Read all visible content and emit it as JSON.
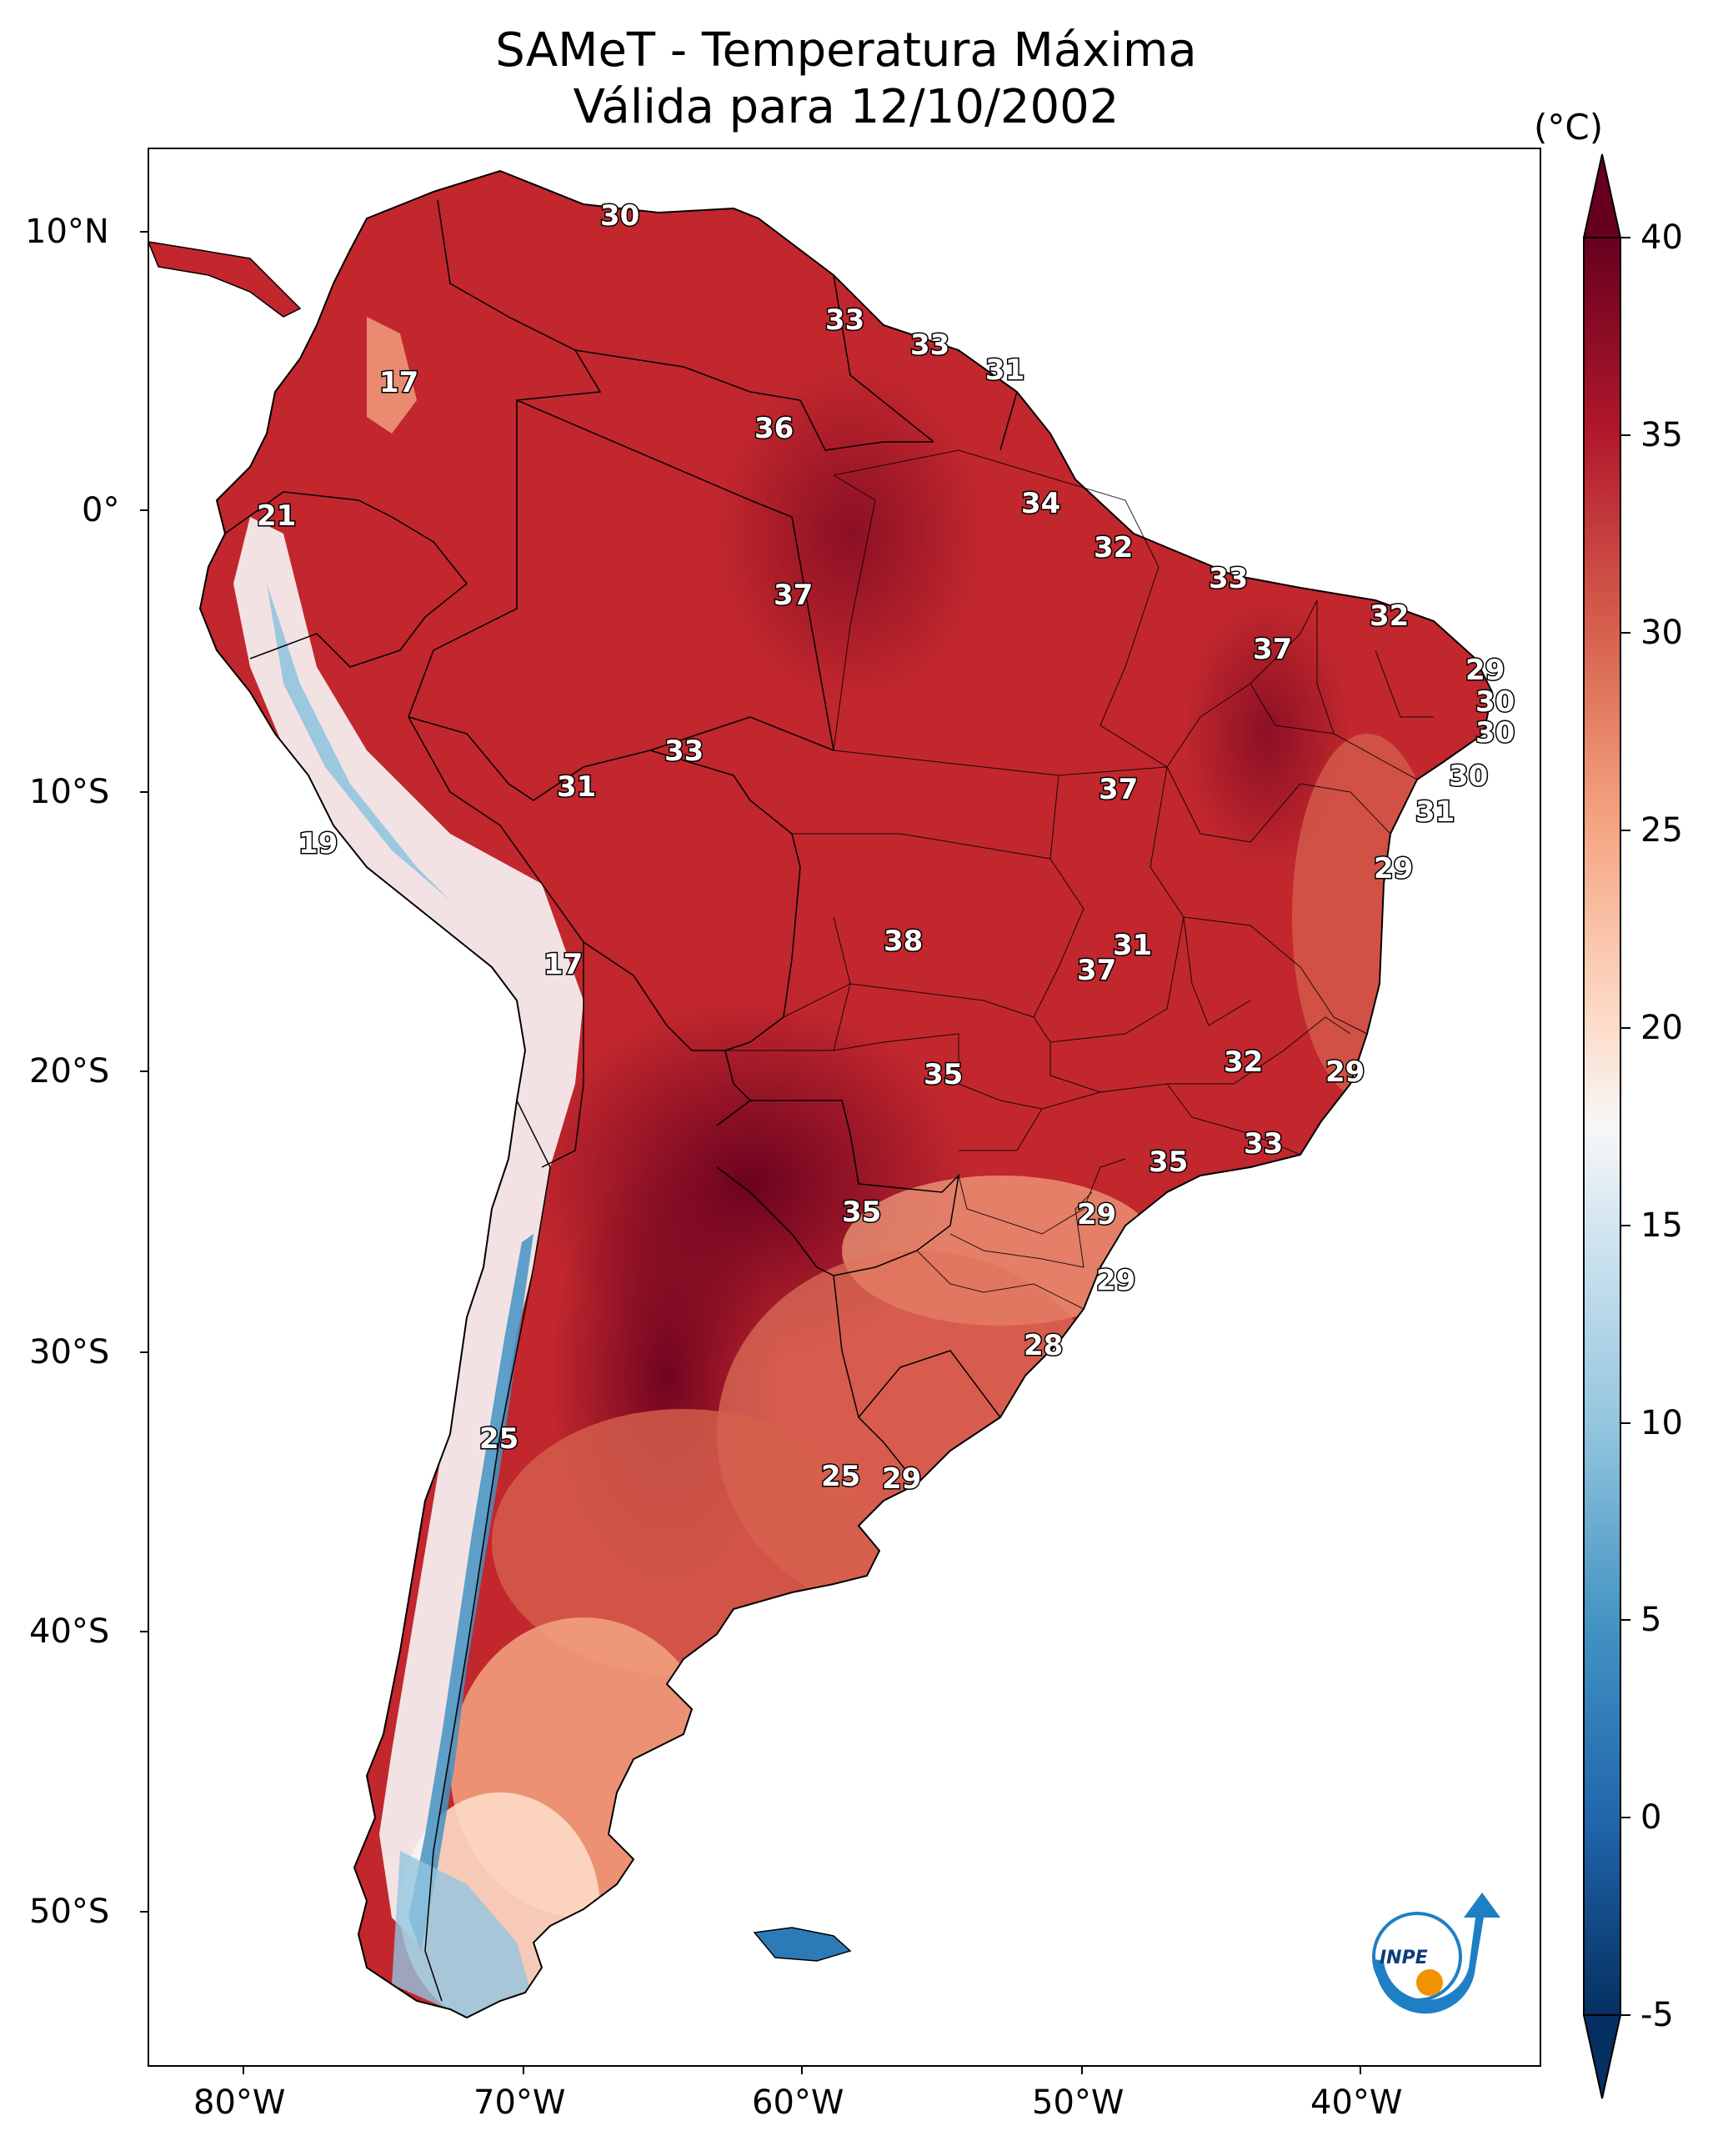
{
  "header": {
    "title_line1": "SAMeT - Temperatura Máxima",
    "title_line2": "Válida para 12/10/2002"
  },
  "axes": {
    "lat_labels": [
      "10°N",
      "0°",
      "10°S",
      "20°S",
      "30°S",
      "40°S",
      "50°S"
    ],
    "lon_labels": [
      "80°W",
      "70°W",
      "60°W",
      "50°W",
      "40°W"
    ]
  },
  "colorbar": {
    "unit": "(°C)",
    "ticks": [
      "40",
      "35",
      "30",
      "25",
      "20",
      "15",
      "10",
      "5",
      "0",
      "-5"
    ],
    "min": -5,
    "max": 40
  },
  "station_labels": [
    "30",
    "17",
    "33",
    "33",
    "31",
    "36",
    "21",
    "34",
    "32",
    "37",
    "33",
    "32",
    "37",
    "29",
    "30",
    "30",
    "33",
    "31",
    "30",
    "19",
    "31",
    "37",
    "29",
    "38",
    "31",
    "37",
    "17",
    "35",
    "32",
    "29",
    "33",
    "35",
    "35",
    "29",
    "29",
    "28",
    "25",
    "25",
    "29"
  ],
  "colors": {
    "hot": "#67001f",
    "warm": "#b2182b",
    "mild": "#d6604d",
    "light_warm": "#f4a582",
    "neutral": "#f7f7f7",
    "cool": "#92c5de",
    "cold": "#2166ac",
    "coldest": "#053061",
    "inpe_blue": "#1f7fc4",
    "inpe_orange": "#f39200"
  },
  "logo": {
    "text": "INPE"
  }
}
